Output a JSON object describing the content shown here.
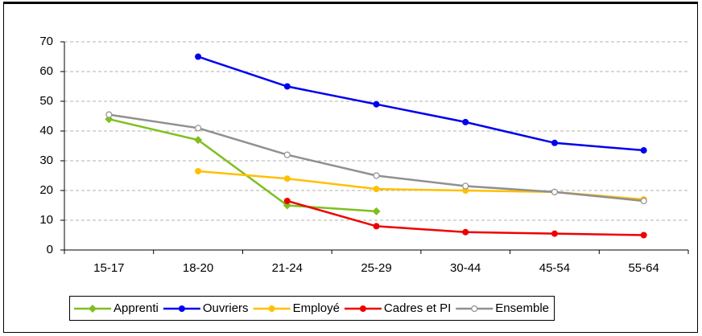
{
  "chart_data": {
    "type": "line",
    "categories": [
      "15-17",
      "18-20",
      "21-24",
      "25-29",
      "30-44",
      "45-54",
      "55-64"
    ],
    "series": [
      {
        "name": "Apprenti",
        "color": "#7fbf1f",
        "marker": "diamond",
        "values": [
          44,
          37,
          15,
          13,
          null,
          null,
          null
        ]
      },
      {
        "name": "Ouvriers",
        "color": "#0000ee",
        "marker": "circle",
        "values": [
          null,
          65,
          55,
          49,
          43,
          36,
          33.5
        ]
      },
      {
        "name": "Employé",
        "color": "#ffc000",
        "marker": "circle",
        "values": [
          null,
          26.5,
          24,
          20.5,
          20,
          19.5,
          17
        ]
      },
      {
        "name": "Cadres et PI",
        "color": "#ee0000",
        "marker": "circle",
        "values": [
          null,
          null,
          16.5,
          8,
          6,
          5.5,
          5
        ]
      },
      {
        "name": "Ensemble",
        "color": "#909090",
        "marker": "open-circle",
        "values": [
          45.5,
          41,
          32,
          25,
          21.5,
          19.5,
          16.5
        ]
      }
    ],
    "ylim": [
      0,
      70
    ],
    "yticks": [
      0,
      10,
      20,
      30,
      40,
      50,
      60,
      70
    ],
    "grid": true,
    "legend": "bottom"
  }
}
